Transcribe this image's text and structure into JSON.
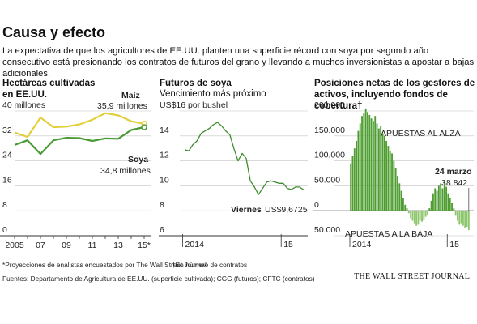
{
  "title": "Causa y efecto",
  "subtitle": "La expectativa de que los agricultores de EE.UU. planten una superficie récord con soya por segundo año consecutivo está presionando los contratos de futuros del grano y llevando a muchos inversionistas a apostar a bajas adicionales.",
  "footnotes": [
    "*Proyecciones de enalistas encuestados por The Wall Street Journal",
    "†En número de contratos"
  ],
  "source": "Fuentes: Departamento de Agricultura de EE.UU. (superficie cultivada); CGG (futuros); CFTC (contratos)",
  "publisher": "THE WALL STREET JOURNAL.",
  "chart_data": [
    {
      "type": "line",
      "title": "Hectáreas cultivadas en EE.UU.",
      "categories": [
        "2005",
        null,
        "07",
        null,
        "09",
        null,
        "11",
        null,
        "13",
        null,
        "15*"
      ],
      "series": [
        {
          "name": "Maíz",
          "color": "#e3cf3a",
          "values": [
            33.1,
            31.7,
            37.9,
            34.8,
            35.0,
            35.7,
            37.2,
            39.3,
            38.6,
            36.7,
            35.9
          ]
        },
        {
          "name": "Soya",
          "color": "#4a9a35",
          "values": [
            29.1,
            30.6,
            26.2,
            30.6,
            31.4,
            31.3,
            30.4,
            31.2,
            31.1,
            33.9,
            34.8
          ]
        }
      ],
      "annotations": [
        "35,9 millones",
        "34,8 millones"
      ],
      "end_markers": true,
      "ylim": [
        0,
        40
      ],
      "yticks": [
        0,
        8,
        16,
        24,
        32,
        {
          "value": 40,
          "label": "40 millones"
        }
      ]
    },
    {
      "type": "line",
      "title": "Futuros de soya",
      "subtitle": "Vencimiento más próximo",
      "categories": [
        "2014",
        null,
        null,
        null,
        null,
        null,
        null,
        null,
        null,
        null,
        null,
        null,
        null,
        null,
        null,
        null,
        null,
        null,
        null,
        null,
        null,
        null,
        null,
        null,
        "15",
        null,
        null,
        null,
        null,
        null
      ],
      "values": [
        12.9,
        12.8,
        13.3,
        13.6,
        14.2,
        14.4,
        14.6,
        14.9,
        15.1,
        14.8,
        14.4,
        14.1,
        13.0,
        12.0,
        12.6,
        12.2,
        10.4,
        9.9,
        9.3,
        9.8,
        10.3,
        10.4,
        10.3,
        10.2,
        10.2,
        9.8,
        9.7,
        9.9,
        9.9,
        9.6725
      ],
      "value_labels": [
        null,
        null,
        null,
        null,
        null,
        null,
        null,
        null,
        null,
        null,
        null,
        null,
        null,
        null,
        null,
        null,
        null,
        null,
        null,
        null,
        null,
        null,
        null,
        null,
        null,
        null,
        null,
        null,
        null,
        "US$9,6725"
      ],
      "annotations": [
        "Viernes"
      ],
      "color": "#3d8c2c",
      "ylim": [
        6,
        16
      ],
      "yticks": [
        6,
        8,
        10,
        12,
        14,
        {
          "value": 16,
          "label": "US$16 por bushel"
        }
      ]
    },
    {
      "type": "bar",
      "title": "Posiciones netas de los gestores de activos, incluyendo fondos de cobertura†",
      "categories": [
        "2014",
        null,
        null,
        null,
        null,
        null,
        null,
        null,
        null,
        null,
        null,
        null,
        null,
        null,
        null,
        null,
        null,
        null,
        null,
        null,
        null,
        null,
        null,
        null,
        null,
        null,
        null,
        null,
        null,
        null,
        null,
        null,
        null,
        null,
        null,
        null,
        null,
        null,
        null,
        null,
        null,
        null,
        null,
        null,
        null,
        null,
        null,
        null,
        null,
        null,
        null,
        null,
        "15",
        null,
        null,
        null,
        null,
        null,
        null,
        null,
        null,
        null,
        null,
        null
      ],
      "values": [
        95000,
        110000,
        125000,
        140000,
        160000,
        175000,
        190000,
        195000,
        205000,
        198000,
        192000,
        185000,
        180000,
        190000,
        175000,
        165000,
        170000,
        155000,
        150000,
        140000,
        130000,
        120000,
        115000,
        100000,
        85000,
        70000,
        55000,
        40000,
        25000,
        12000,
        5000,
        -5000,
        -15000,
        -20000,
        -25000,
        -30000,
        -28000,
        -20000,
        -22000,
        -18000,
        -12000,
        -8000,
        5000,
        20000,
        35000,
        45000,
        40000,
        50000,
        55000,
        45000,
        60000,
        48000,
        35000,
        25000,
        15000,
        5000,
        -10000,
        -20000,
        -28000,
        -25000,
        -30000,
        -35000,
        -32000,
        -38842
      ],
      "value_labels": [
        null,
        null,
        null,
        null,
        null,
        null,
        null,
        null,
        null,
        null,
        null,
        null,
        null,
        null,
        null,
        null,
        null,
        null,
        null,
        null,
        null,
        null,
        null,
        null,
        null,
        null,
        null,
        null,
        null,
        null,
        null,
        null,
        null,
        null,
        null,
        null,
        null,
        null,
        null,
        null,
        null,
        null,
        null,
        null,
        null,
        null,
        null,
        null,
        null,
        null,
        null,
        null,
        null,
        null,
        null,
        null,
        null,
        null,
        null,
        null,
        null,
        null,
        null,
        "38.842"
      ],
      "annotations": [
        "APUESTAS AL ALZA",
        "APUESTAS A LA BAJA",
        "24 marzo"
      ],
      "color": "#4e9d31",
      "negative_color": "#8dc66c",
      "ylim": [
        -50000,
        200000
      ],
      "yticks": [
        {
          "value": -50000,
          "label": "50.000"
        },
        0,
        {
          "value": 50000,
          "label": "50.000"
        },
        {
          "value": 100000,
          "label": "100.000"
        },
        {
          "value": 150000,
          "label": "150.000"
        },
        {
          "value": 200000,
          "label": "200.000"
        }
      ]
    }
  ]
}
